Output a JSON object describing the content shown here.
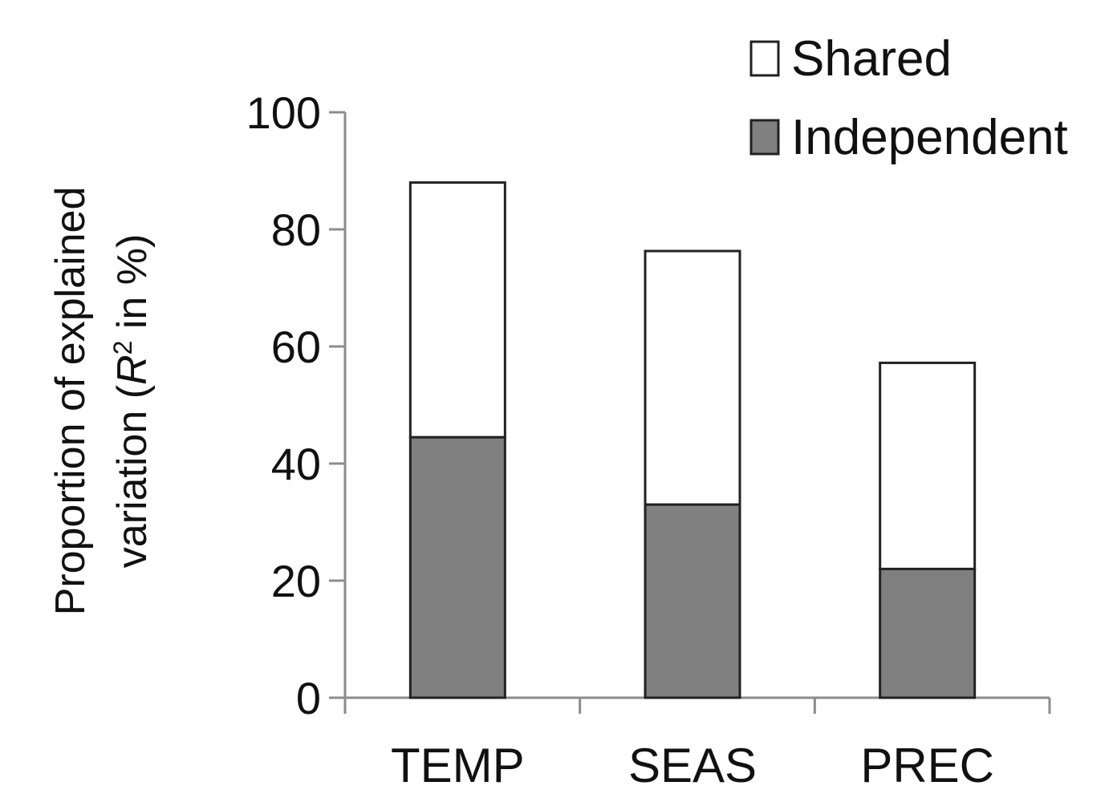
{
  "chart_data": {
    "type": "bar",
    "stacked": true,
    "categories": [
      "TEMP",
      "SEAS",
      "PREC"
    ],
    "series": [
      {
        "name": "Independent",
        "values": [
          44.5,
          33,
          22
        ],
        "color": "#808080"
      },
      {
        "name": "Shared",
        "values": [
          43.5,
          43.3,
          35.2
        ],
        "color": "#ffffff"
      }
    ],
    "totals": [
      88,
      76.3,
      57.2
    ],
    "ylabel_line1": "Proportion of explained",
    "ylabel_line2_prefix": "variation (",
    "ylabel_italic": "R",
    "ylabel_sup": "2",
    "ylabel_suffix": " in %)",
    "ylim": [
      0,
      100
    ],
    "yticks": [
      0,
      20,
      40,
      60,
      80,
      100
    ],
    "ytick_labels": [
      "0",
      "20",
      "40",
      "60",
      "80",
      "100"
    ],
    "grid": false,
    "legend_position": "top-right",
    "legend_order": [
      "Shared",
      "Independent"
    ]
  }
}
